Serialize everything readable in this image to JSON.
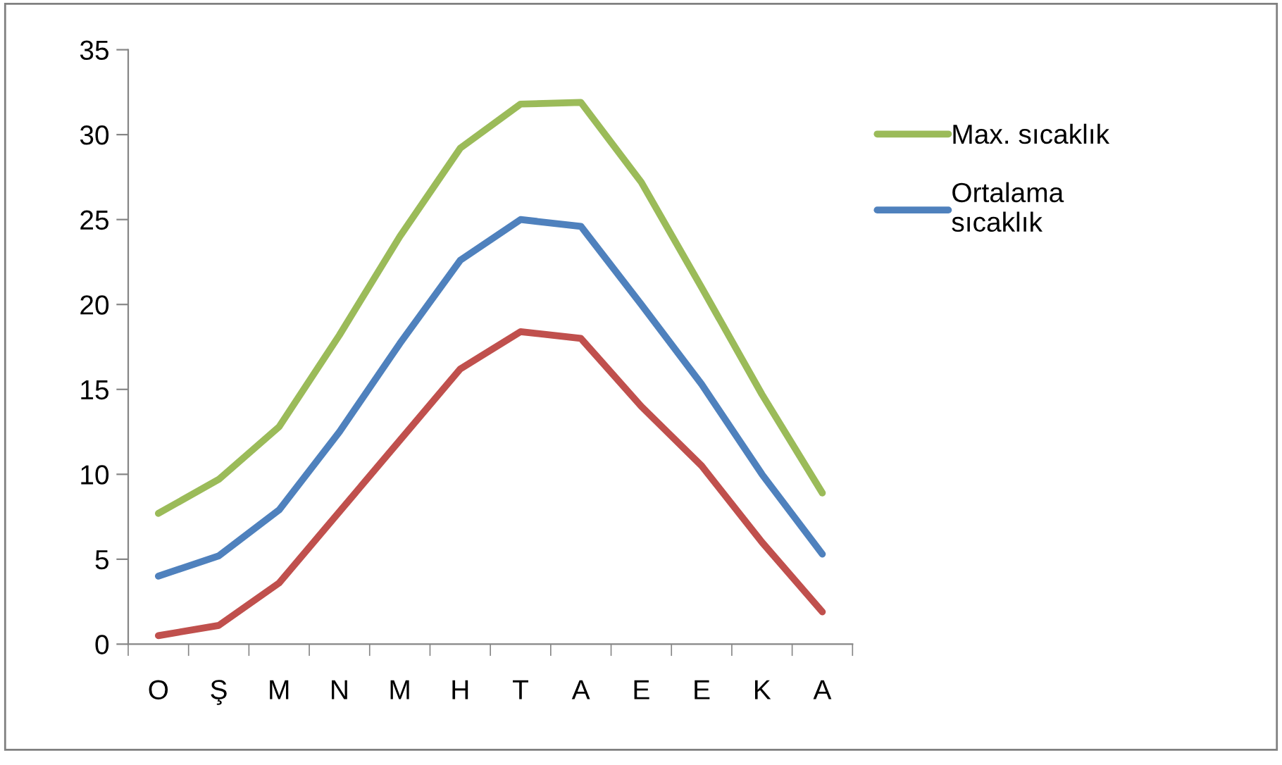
{
  "chart_data": {
    "type": "line",
    "categories": [
      "O",
      "Ş",
      "M",
      "N",
      "M",
      "H",
      "T",
      "A",
      "E",
      "E",
      "K",
      "A"
    ],
    "series": [
      {
        "name": "Max. sıcaklık",
        "color": "#9bbb59",
        "values": [
          7.7,
          9.7,
          12.8,
          18.2,
          24.0,
          29.2,
          31.8,
          31.9,
          27.2,
          21.0,
          14.7,
          8.9
        ]
      },
      {
        "name": "Ortalama sıcaklık",
        "color": "#4f81bd",
        "values": [
          4.0,
          5.2,
          7.9,
          12.5,
          17.7,
          22.6,
          25.0,
          24.6,
          20.0,
          15.3,
          10.0,
          5.3
        ]
      },
      {
        "color": "#c0504d",
        "values": [
          0.5,
          1.1,
          3.6,
          7.8,
          12.0,
          16.2,
          18.4,
          18.0,
          14.0,
          10.5,
          6.0,
          1.9
        ]
      }
    ],
    "ylim": [
      0,
      35
    ],
    "yticks": [
      0,
      5,
      10,
      15,
      20,
      25,
      30,
      35
    ],
    "legend": "right",
    "marker": "none",
    "line_style": "solid"
  }
}
